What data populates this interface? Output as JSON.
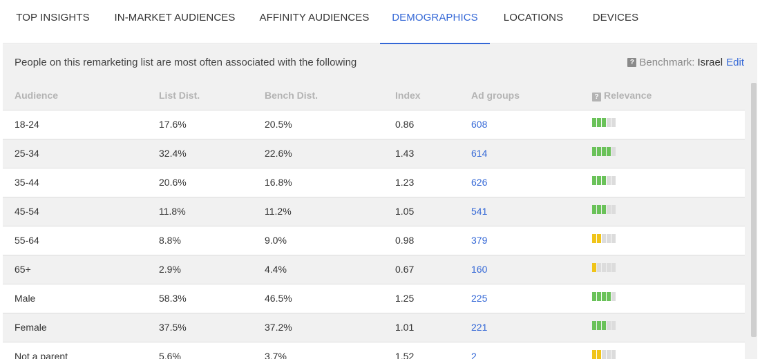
{
  "tabs": [
    {
      "label": "TOP INSIGHTS",
      "active": false
    },
    {
      "label": "IN-MARKET AUDIENCES",
      "active": false
    },
    {
      "label": "AFFINITY AUDIENCES",
      "active": false
    },
    {
      "label": "DEMOGRAPHICS",
      "active": true
    },
    {
      "label": "LOCATIONS",
      "active": false
    },
    {
      "label": "DEVICES",
      "active": false
    }
  ],
  "notice": "People on this remarketing list are most often associated with the following",
  "benchmark": {
    "label": "Benchmark:",
    "value": "Israel",
    "edit": "Edit",
    "icon": "help-icon"
  },
  "table": {
    "columns": [
      "Audience",
      "List Dist.",
      "Bench Dist.",
      "Index",
      "Ad groups",
      "Relevance"
    ],
    "relevance_icon": "help-icon",
    "rows": [
      {
        "audience": "18-24",
        "list": "17.6%",
        "bench": "20.5%",
        "index": "0.86",
        "adgroups": "608",
        "relevance": 3,
        "relevance_color": "green"
      },
      {
        "audience": "25-34",
        "list": "32.4%",
        "bench": "22.6%",
        "index": "1.43",
        "adgroups": "614",
        "relevance": 4,
        "relevance_color": "green"
      },
      {
        "audience": "35-44",
        "list": "20.6%",
        "bench": "16.8%",
        "index": "1.23",
        "adgroups": "626",
        "relevance": 3,
        "relevance_color": "green"
      },
      {
        "audience": "45-54",
        "list": "11.8%",
        "bench": "11.2%",
        "index": "1.05",
        "adgroups": "541",
        "relevance": 3,
        "relevance_color": "green"
      },
      {
        "audience": "55-64",
        "list": "8.8%",
        "bench": "9.0%",
        "index": "0.98",
        "adgroups": "379",
        "relevance": 2,
        "relevance_color": "yellow"
      },
      {
        "audience": "65+",
        "list": "2.9%",
        "bench": "4.4%",
        "index": "0.67",
        "adgroups": "160",
        "relevance": 1,
        "relevance_color": "yellow"
      },
      {
        "audience": "Male",
        "list": "58.3%",
        "bench": "46.5%",
        "index": "1.25",
        "adgroups": "225",
        "relevance": 4,
        "relevance_color": "green"
      },
      {
        "audience": "Female",
        "list": "37.5%",
        "bench": "37.2%",
        "index": "1.01",
        "adgroups": "221",
        "relevance": 3,
        "relevance_color": "green"
      },
      {
        "audience": "Not a parent",
        "list": "5.6%",
        "bench": "3.7%",
        "index": "1.52",
        "adgroups": "2",
        "relevance": 2,
        "relevance_color": "yellow"
      }
    ]
  },
  "colors": {
    "accent": "#3367d6",
    "green": "#6ac259",
    "yellow": "#f0c419",
    "inactive_bar": "#dcdcdc"
  }
}
